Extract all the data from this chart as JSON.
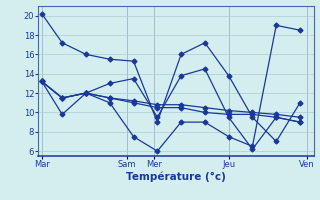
{
  "xlabel": "Température (°c)",
  "background_color": "#d4eef0",
  "grid_color": "#aaccd4",
  "line_color": "#1a3898",
  "ylim": [
    5.5,
    21.0
  ],
  "yticks": [
    6,
    8,
    10,
    12,
    14,
    16,
    18,
    20
  ],
  "day_ticks": [
    0.5,
    13.0,
    17.0,
    28.0,
    39.5
  ],
  "day_labels": [
    "Mar",
    "Sam",
    "Mer",
    "Jeu",
    "Ven"
  ],
  "vline_positions": [
    0.5,
    13.0,
    17.0,
    28.0,
    39.5
  ],
  "series": [
    {
      "x": [
        0.5,
        3.5,
        7.0,
        10.5,
        14.0,
        17.5,
        21.0,
        24.5,
        28.0,
        31.5,
        35.0,
        38.5
      ],
      "y": [
        20.2,
        17.2,
        16.0,
        15.5,
        15.3,
        9.0,
        16.0,
        17.2,
        13.8,
        9.5,
        7.0,
        11.0
      ]
    },
    {
      "x": [
        0.5,
        3.5,
        7.0,
        10.5,
        14.0,
        17.5,
        21.0,
        24.5,
        28.0,
        31.5,
        35.0,
        38.5
      ],
      "y": [
        13.2,
        11.5,
        12.0,
        13.0,
        13.5,
        9.5,
        13.8,
        14.5,
        9.5,
        6.2,
        9.5,
        9.0
      ]
    },
    {
      "x": [
        0.5,
        3.5,
        7.0,
        10.5,
        14.0,
        17.5,
        21.0,
        24.5,
        28.0,
        31.5,
        35.0,
        38.5
      ],
      "y": [
        13.2,
        11.5,
        12.0,
        11.5,
        11.0,
        10.5,
        10.5,
        10.0,
        9.8,
        9.8,
        9.5,
        9.0
      ]
    },
    {
      "x": [
        0.5,
        3.5,
        7.0,
        10.5,
        14.0,
        17.5,
        21.0,
        24.5,
        28.0,
        31.5,
        35.0,
        38.5
      ],
      "y": [
        13.2,
        11.5,
        12.0,
        11.5,
        11.2,
        10.8,
        10.8,
        10.5,
        10.2,
        10.0,
        9.8,
        9.5
      ]
    },
    {
      "x": [
        0.5,
        3.5,
        7.0,
        10.5,
        14.0,
        17.5,
        21.0,
        24.5,
        28.0,
        31.5,
        35.0,
        38.5
      ],
      "y": [
        13.2,
        9.8,
        12.0,
        11.0,
        7.5,
        6.0,
        9.0,
        9.0,
        7.5,
        6.5,
        19.0,
        18.5
      ]
    }
  ],
  "xlim": [
    0,
    40.5
  ]
}
